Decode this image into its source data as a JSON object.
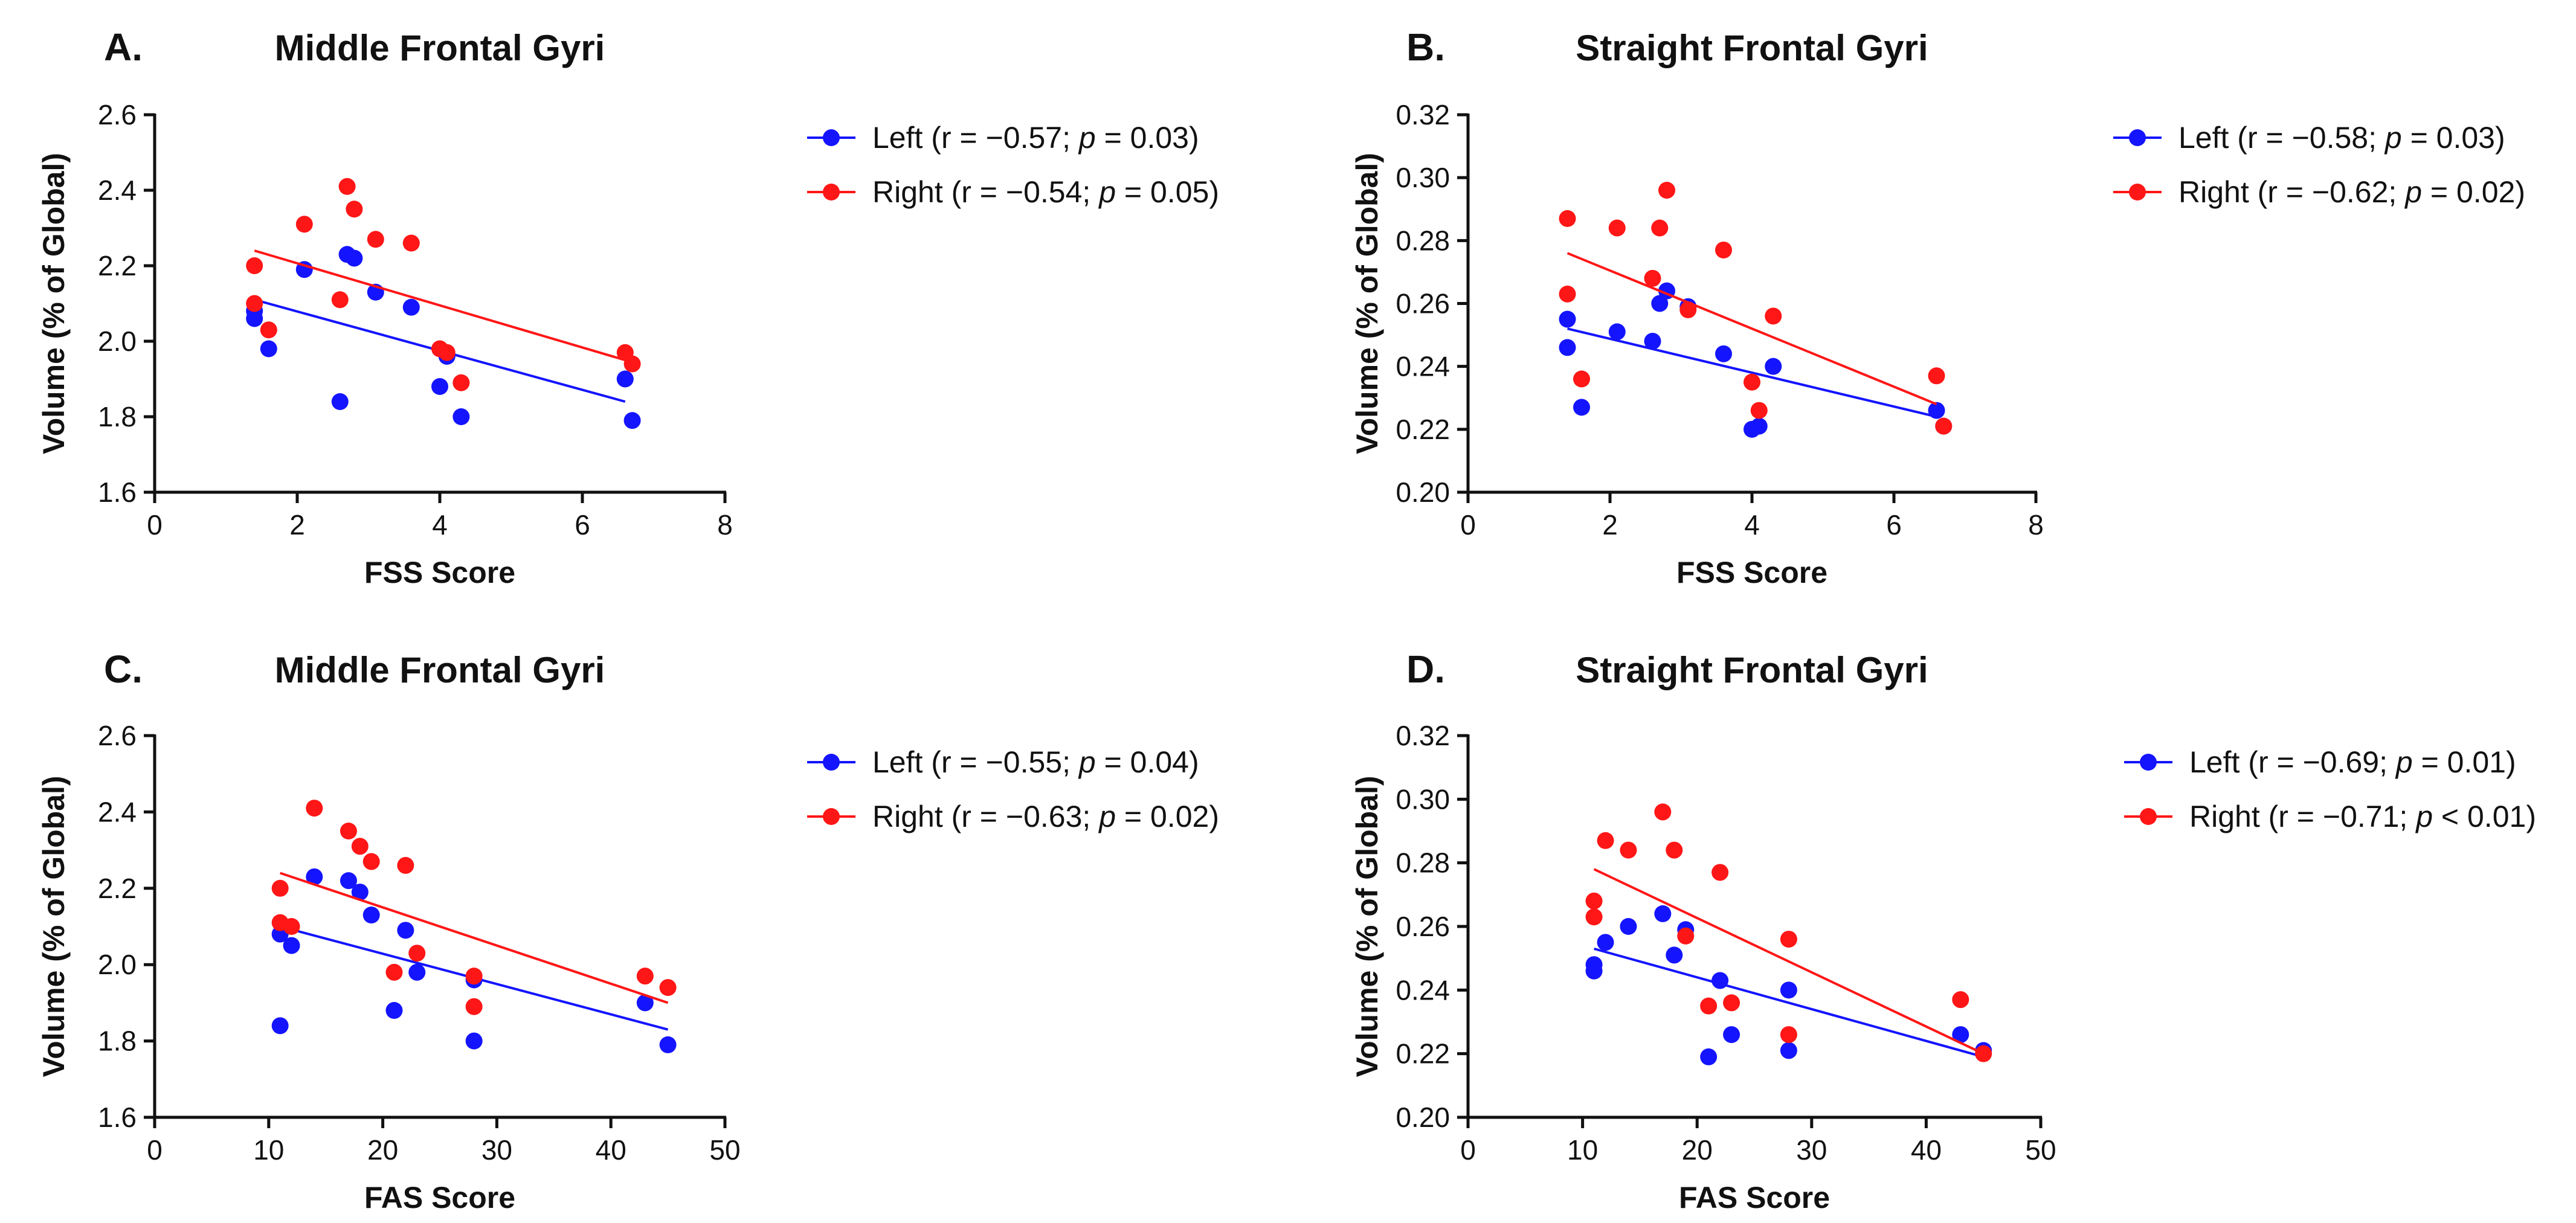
{
  "colors": {
    "left": "#1414ff",
    "right": "#ff1616",
    "axis": "#111111"
  },
  "chart_data": [
    {
      "type": "scatter",
      "panel_label": "A.",
      "title": "Middle Frontal Gyri",
      "xlabel": "FSS Score",
      "ylabel": "Volume (% of Global)",
      "xlim": [
        0,
        8
      ],
      "ylim": [
        1.6,
        2.6
      ],
      "xticks": [
        0,
        2,
        4,
        6,
        8
      ],
      "yticks": [
        1.6,
        1.8,
        2.0,
        2.2,
        2.4,
        2.6
      ],
      "xtick_labels": [
        "0",
        "2",
        "4",
        "6",
        "8"
      ],
      "ytick_labels": [
        "1.6",
        "1.8",
        "2.0",
        "2.2",
        "2.4",
        "2.6"
      ],
      "series": [
        {
          "name": "Left",
          "legend_pre": "Left (r = −0.57;  ",
          "legend_p": "p",
          "legend_post": " = 0.03)",
          "color_key": "left",
          "x": [
            1.4,
            1.4,
            1.6,
            2.1,
            2.6,
            2.7,
            2.8,
            3.1,
            3.6,
            4.0,
            4.1,
            4.3,
            6.6,
            6.7
          ],
          "y": [
            2.08,
            2.06,
            1.98,
            2.19,
            1.84,
            2.23,
            2.22,
            2.13,
            2.09,
            1.88,
            1.96,
            1.8,
            1.9,
            1.79
          ],
          "fit": [
            [
              1.4,
              2.11
            ],
            [
              6.6,
              1.84
            ]
          ]
        },
        {
          "name": "Right",
          "legend_pre": "Right (r = −0.54;  ",
          "legend_p": "p",
          "legend_post": " = 0.05)",
          "color_key": "right",
          "x": [
            1.4,
            1.4,
            1.6,
            2.1,
            2.6,
            2.7,
            2.8,
            3.1,
            3.6,
            4.0,
            4.1,
            4.3,
            6.6,
            6.7
          ],
          "y": [
            2.2,
            2.1,
            2.03,
            2.31,
            2.11,
            2.41,
            2.35,
            2.27,
            2.26,
            1.98,
            1.97,
            1.89,
            1.97,
            1.94
          ],
          "fit": [
            [
              1.4,
              2.24
            ],
            [
              6.6,
              1.95
            ]
          ]
        }
      ]
    },
    {
      "type": "scatter",
      "panel_label": "B.",
      "title": "Straight Frontal Gyri",
      "xlabel": "FSS Score",
      "ylabel": "Volume (% of Global)",
      "xlim": [
        0,
        8
      ],
      "ylim": [
        0.2,
        0.32
      ],
      "xticks": [
        0,
        2,
        4,
        6,
        8
      ],
      "yticks": [
        0.2,
        0.22,
        0.24,
        0.26,
        0.28,
        0.3,
        0.32
      ],
      "xtick_labels": [
        "0",
        "2",
        "4",
        "6",
        "8"
      ],
      "ytick_labels": [
        "0.20",
        "0.22",
        "0.24",
        "0.26",
        "0.28",
        "0.30",
        "0.32"
      ],
      "series": [
        {
          "name": "Left",
          "legend_pre": "Left (r = −0.58;  ",
          "legend_p": "p",
          "legend_post": " = 0.03)",
          "color_key": "left",
          "x": [
            1.4,
            1.4,
            1.6,
            2.1,
            2.6,
            2.7,
            2.8,
            3.1,
            3.6,
            4.0,
            4.1,
            4.3,
            6.6,
            6.7
          ],
          "y": [
            0.255,
            0.246,
            0.227,
            0.251,
            0.248,
            0.26,
            0.264,
            0.259,
            0.244,
            0.22,
            0.221,
            0.24,
            0.226,
            0.221
          ],
          "fit": [
            [
              1.4,
              0.252
            ],
            [
              6.6,
              0.224
            ]
          ]
        },
        {
          "name": "Right",
          "legend_pre": "Right (r = −0.62;  ",
          "legend_p": "p",
          "legend_post": " = 0.02)",
          "color_key": "right",
          "x": [
            1.4,
            1.4,
            1.6,
            2.1,
            2.6,
            2.7,
            2.8,
            3.1,
            3.6,
            4.0,
            4.1,
            4.3,
            6.6,
            6.7
          ],
          "y": [
            0.287,
            0.263,
            0.236,
            0.284,
            0.268,
            0.284,
            0.296,
            0.258,
            0.277,
            0.235,
            0.226,
            0.256,
            0.237,
            0.221
          ],
          "fit": [
            [
              1.4,
              0.276
            ],
            [
              6.6,
              0.228
            ]
          ]
        }
      ]
    },
    {
      "type": "scatter",
      "panel_label": "C.",
      "title": "Middle Frontal Gyri",
      "xlabel": "FAS Score",
      "ylabel": "Volume (% of Global)",
      "xlim": [
        0,
        50
      ],
      "ylim": [
        1.6,
        2.6
      ],
      "xticks": [
        0,
        10,
        20,
        30,
        40,
        50
      ],
      "yticks": [
        1.6,
        1.8,
        2.0,
        2.2,
        2.4,
        2.6
      ],
      "xtick_labels": [
        "0",
        "10",
        "20",
        "30",
        "40",
        "50"
      ],
      "ytick_labels": [
        "1.6",
        "1.8",
        "2.0",
        "2.2",
        "2.4",
        "2.6"
      ],
      "series": [
        {
          "name": "Left",
          "legend_pre": "Left (r = −0.55;  ",
          "legend_p": "p",
          "legend_post": " = 0.04)",
          "color_key": "left",
          "x": [
            11,
            11,
            12,
            14,
            17,
            18,
            19,
            21,
            22,
            23,
            28,
            28,
            43,
            45
          ],
          "y": [
            1.84,
            2.08,
            2.05,
            2.23,
            2.22,
            2.19,
            2.13,
            1.88,
            2.09,
            1.98,
            1.96,
            1.8,
            1.9,
            1.79
          ],
          "fit": [
            [
              11,
              2.1
            ],
            [
              45,
              1.83
            ]
          ]
        },
        {
          "name": "Right",
          "legend_pre": "Right (r = −0.63;  ",
          "legend_p": "p",
          "legend_post": " = 0.02)",
          "color_key": "right",
          "x": [
            11,
            11,
            12,
            14,
            17,
            18,
            19,
            21,
            22,
            23,
            28,
            28,
            43,
            45
          ],
          "y": [
            2.2,
            2.11,
            2.1,
            2.41,
            2.35,
            2.31,
            2.27,
            1.98,
            2.26,
            2.03,
            1.97,
            1.89,
            1.97,
            1.94
          ],
          "fit": [
            [
              11,
              2.24
            ],
            [
              45,
              1.9
            ]
          ]
        }
      ]
    },
    {
      "type": "scatter",
      "panel_label": "D.",
      "title": "Straight Frontal Gyri",
      "xlabel": "FAS Score",
      "ylabel": "Volume (% of Global)",
      "xlim": [
        0,
        50
      ],
      "ylim": [
        0.2,
        0.32
      ],
      "xticks": [
        0,
        10,
        20,
        30,
        40,
        50
      ],
      "yticks": [
        0.2,
        0.22,
        0.24,
        0.26,
        0.28,
        0.3,
        0.32
      ],
      "xtick_labels": [
        "0",
        "10",
        "20",
        "30",
        "40",
        "50"
      ],
      "ytick_labels": [
        "0.20",
        "0.22",
        "0.24",
        "0.26",
        "0.28",
        "0.30",
        "0.32"
      ],
      "series": [
        {
          "name": "Left",
          "legend_pre": "Left (r = −0.69;  ",
          "legend_p": "p",
          "legend_post": " = 0.01)",
          "color_key": "left",
          "x": [
            11,
            11,
            12,
            14,
            17,
            18,
            19,
            21,
            22,
            23,
            28,
            28,
            43,
            45
          ],
          "y": [
            0.246,
            0.248,
            0.255,
            0.26,
            0.264,
            0.251,
            0.259,
            0.219,
            0.243,
            0.226,
            0.221,
            0.24,
            0.226,
            0.221
          ],
          "fit": [
            [
              11,
              0.253
            ],
            [
              45,
              0.219
            ]
          ]
        },
        {
          "name": "Right",
          "legend_pre": "Right (r = −0.71;  ",
          "legend_p": "p",
          "legend_post": " < 0.01)",
          "color_key": "right",
          "x": [
            11,
            11,
            12,
            14,
            17,
            18,
            19,
            21,
            22,
            23,
            28,
            28,
            43,
            45
          ],
          "y": [
            0.268,
            0.263,
            0.287,
            0.284,
            0.296,
            0.284,
            0.257,
            0.235,
            0.277,
            0.236,
            0.256,
            0.226,
            0.237,
            0.22
          ],
          "fit": [
            [
              11,
              0.278
            ],
            [
              45,
              0.22
            ]
          ]
        }
      ]
    }
  ]
}
